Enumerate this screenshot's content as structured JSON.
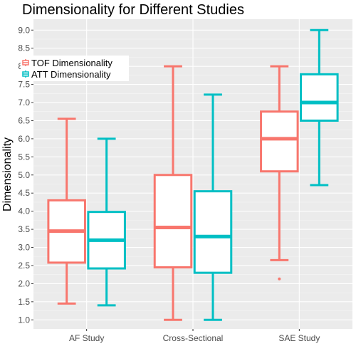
{
  "chart_data": {
    "type": "box",
    "title": "Dimensionality for Different Studies",
    "xlabel": "",
    "ylabel": "Dimensionality",
    "categories": [
      "AF Study",
      "Cross-Sectional",
      "SAE Study"
    ],
    "ylim": [
      0.75,
      9.3
    ],
    "yticks": [
      "1.0",
      "1.5",
      "2.0",
      "2.5",
      "3.0",
      "3.5",
      "4.0",
      "4.5",
      "5.0",
      "5.5",
      "6.0",
      "6.5",
      "7.0",
      "7.5",
      "8.0",
      "8.5",
      "9.0"
    ],
    "grid": true,
    "legend_position": "top-left",
    "series": [
      {
        "name": "TOF Dimensionality",
        "color": "#F8766D",
        "boxes": [
          {
            "min": 1.45,
            "q1": 2.58,
            "median": 3.45,
            "q3": 4.3,
            "max": 6.55,
            "outliers": []
          },
          {
            "min": 1.0,
            "q1": 2.45,
            "median": 3.55,
            "q3": 5.0,
            "max": 8.0,
            "outliers": []
          },
          {
            "min": 2.65,
            "q1": 5.1,
            "median": 6.0,
            "q3": 6.75,
            "max": 8.0,
            "outliers": [
              2.13
            ]
          }
        ]
      },
      {
        "name": "ATT Dimensionality",
        "color": "#00BFC4",
        "boxes": [
          {
            "min": 1.4,
            "q1": 2.42,
            "median": 3.2,
            "q3": 3.98,
            "max": 6.0,
            "outliers": []
          },
          {
            "min": 1.0,
            "q1": 2.3,
            "median": 3.3,
            "q3": 4.55,
            "max": 7.22,
            "outliers": []
          },
          {
            "min": 4.72,
            "q1": 6.5,
            "median": 7.0,
            "q3": 7.78,
            "max": 9.0,
            "outliers": []
          }
        ]
      }
    ]
  }
}
